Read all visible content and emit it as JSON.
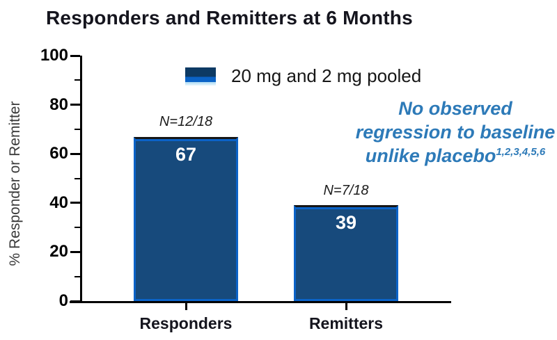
{
  "title": "Responders and Remitters at 6 Months",
  "legend": {
    "label": "20 mg and 2 mg pooled"
  },
  "annotation": {
    "line1": "No observed",
    "line2": "regression to baseline",
    "line3": "unlike placebo",
    "superscript": "1,2,3,4,5,6",
    "color": "#2d7ab8"
  },
  "chart_data": {
    "type": "bar",
    "title": "Responders and Remitters at 6 Months",
    "categories": [
      "Responders",
      "Remitters"
    ],
    "series": [
      {
        "name": "20 mg and 2 mg pooled",
        "values": [
          67,
          39
        ],
        "bar_labels": [
          "67",
          "39"
        ],
        "bar_annotations": [
          "N=12/18",
          "N=7/18"
        ]
      }
    ],
    "xlabel": "",
    "ylabel": "% Responder or Remitter",
    "ylim": [
      0,
      100
    ],
    "yticks": [
      0,
      20,
      40,
      60,
      80,
      100
    ],
    "yticks_minor": [
      10,
      30,
      50,
      70,
      90
    ],
    "grid": false,
    "legend_position": "top-center",
    "colors": {
      "bar_fill": "#174a7c",
      "bar_edge": "#0b63c8",
      "bar_top_edge": "#161616",
      "value_text": "#ffffff",
      "annotation_blue": "#2d7ab8",
      "axis": "#000000"
    }
  }
}
